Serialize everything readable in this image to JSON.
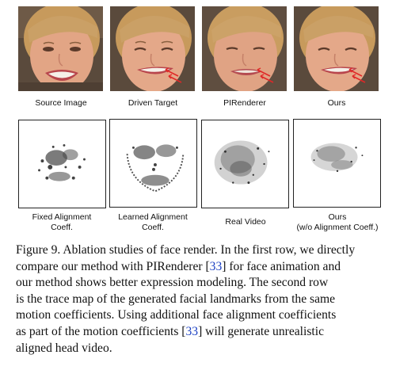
{
  "row1": {
    "labels": [
      "Source Image",
      "Driven Target",
      "PIRenderer",
      "Ours"
    ]
  },
  "row2": {
    "labels": [
      "Fixed Alignment\nCoeff.",
      "Learned Alignment\nCoeff.",
      "Real Video",
      "Ours\n(w/o Alignment Coeff.)"
    ]
  },
  "caption": {
    "lines": [
      [
        "Figure 9. Ablation studies of face render. In the first row, we directly"
      ],
      [
        "compare our method with PIRenderer [",
        "33",
        "] for face animation and"
      ],
      [
        "our method shows better expression modeling. The second row"
      ],
      [
        "is the trace map of the generated facial landmarks from the same"
      ],
      [
        "motion coefficients. Using additional face alignment coefficients"
      ],
      [
        "as part of the motion coefficients  [",
        "33",
        "] will generate unrealistic"
      ],
      [
        "aligned head video."
      ]
    ]
  },
  "colors": {
    "cite": "#1a3fc2",
    "skin": "#e2a585",
    "hair": "#c79a5c",
    "lips": "#b8454c",
    "arrow": "#e02828"
  }
}
